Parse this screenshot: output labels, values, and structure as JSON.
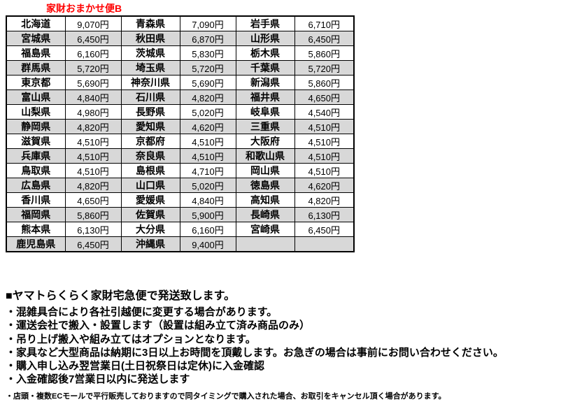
{
  "title": "家財おまかせ便B",
  "colors": {
    "title_red": "#ff0000",
    "row_shade": "#d8d8d8",
    "border": "#000000"
  },
  "table": {
    "rows": [
      [
        "北海道",
        "9,070円",
        "青森県",
        "7,090円",
        "岩手県",
        "6,710円"
      ],
      [
        "宮城県",
        "6,450円",
        "秋田県",
        "6,870円",
        "山形県",
        "6,450円"
      ],
      [
        "福島県",
        "6,160円",
        "茨城県",
        "5,830円",
        "栃木県",
        "5,860円"
      ],
      [
        "群馬県",
        "5,720円",
        "埼玉県",
        "5,720円",
        "千葉県",
        "5,720円"
      ],
      [
        "東京都",
        "5,690円",
        "神奈川県",
        "5,690円",
        "新潟県",
        "5,860円"
      ],
      [
        "富山県",
        "4,840円",
        "石川県",
        "4,820円",
        "福井県",
        "4,650円"
      ],
      [
        "山梨県",
        "4,980円",
        "長野県",
        "5,020円",
        "岐阜県",
        "4,540円"
      ],
      [
        "静岡県",
        "4,820円",
        "愛知県",
        "4,620円",
        "三重県",
        "4,510円"
      ],
      [
        "滋賀県",
        "4,510円",
        "京都府",
        "4,510円",
        "大阪府",
        "4,510円"
      ],
      [
        "兵庫県",
        "4,510円",
        "奈良県",
        "4,510円",
        "和歌山県",
        "4,510円"
      ],
      [
        "鳥取県",
        "4,510円",
        "島根県",
        "4,710円",
        "岡山県",
        "4,510円"
      ],
      [
        "広島県",
        "4,820円",
        "山口県",
        "5,020円",
        "徳島県",
        "4,620円"
      ],
      [
        "香川県",
        "4,650円",
        "愛媛県",
        "4,840円",
        "高知県",
        "4,820円"
      ],
      [
        "福岡県",
        "5,860円",
        "佐賀県",
        "5,900円",
        "長崎県",
        "6,130円"
      ],
      [
        "熊本県",
        "6,130円",
        "大分県",
        "6,160円",
        "宮崎県",
        "6,450円"
      ],
      [
        "鹿児島県",
        "6,450円",
        "沖縄県",
        "9,400円",
        "",
        ""
      ]
    ]
  },
  "notes": {
    "heading": "■ヤマトらくらく家財宅急便で発送致します。",
    "bullets": [
      "・混雑具合により各社引越便に変更する場合があります。",
      "・運送会社で搬入・設置します（設置は組み立て済み商品のみ）",
      "・吊り上げ搬入や組み立てはオプションとなります。",
      "・家具など大型商品は納期に3日以上お時間を頂戴します。お急ぎの場合は事前にお問い合わせください。",
      "・購入申し込み翌営業日(土日祝祭日は定休)に入金確認",
      "・入金確認後7営業日以内に発送します"
    ],
    "fine_print": "・店頭・複数ECモールで平行販売しておりますので同タイミングで購入された場合、お取引をキャンセル頂く場合があります。"
  }
}
